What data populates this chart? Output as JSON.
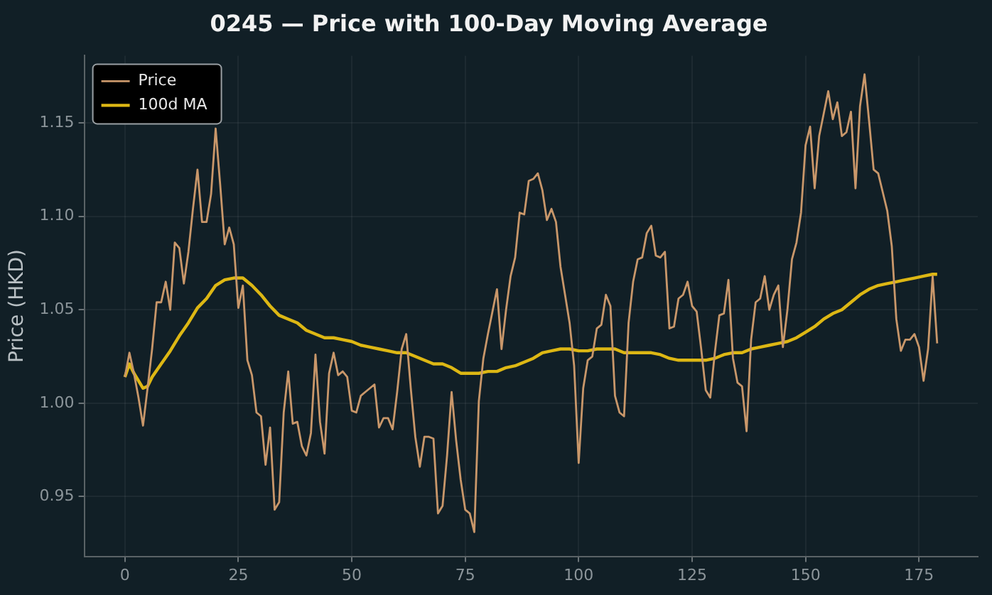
{
  "chart_data": {
    "type": "line",
    "title": "0245 — Price with 100-Day Moving Average",
    "ylabel": "Price (HKD)",
    "x": [
      0,
      1,
      2,
      3,
      4,
      5,
      6,
      7,
      8,
      9,
      10,
      11,
      12,
      13,
      14,
      15,
      16,
      17,
      18,
      19,
      20,
      21,
      22,
      23,
      24,
      25,
      26,
      27,
      28,
      29,
      30,
      31,
      32,
      33,
      34,
      35,
      36,
      37,
      38,
      39,
      40,
      41,
      42,
      43,
      44,
      45,
      46,
      47,
      48,
      49,
      50,
      51,
      52,
      53,
      54,
      55,
      56,
      57,
      58,
      59,
      60,
      61,
      62,
      63,
      64,
      65,
      66,
      67,
      68,
      69,
      70,
      71,
      72,
      73,
      74,
      75,
      76,
      77,
      78,
      79,
      80,
      81,
      82,
      83,
      84,
      85,
      86,
      87,
      88,
      89,
      90,
      91,
      92,
      93,
      94,
      95,
      96,
      97,
      98,
      99,
      100,
      101,
      102,
      103,
      104,
      105,
      106,
      107,
      108,
      109,
      110,
      111,
      112,
      113,
      114,
      115,
      116,
      117,
      118,
      119,
      120,
      121,
      122,
      123,
      124,
      125,
      126,
      127,
      128,
      129,
      130,
      131,
      132,
      133,
      134,
      135,
      136,
      137,
      138,
      139,
      140,
      141,
      142,
      143,
      144,
      145,
      146,
      147,
      148,
      149,
      150,
      151,
      152,
      153,
      154,
      155,
      156,
      157,
      158,
      159,
      160,
      161,
      162,
      163,
      164,
      165,
      166,
      167,
      168,
      169,
      170,
      171,
      172,
      173,
      174,
      175,
      176,
      177,
      178,
      179
    ],
    "series": [
      {
        "name": "Price",
        "color": "#c9976a",
        "values": [
          1.014,
          1.027,
          1.016,
          1.003,
          0.988,
          1.008,
          1.029,
          1.054,
          1.054,
          1.065,
          1.05,
          1.086,
          1.083,
          1.064,
          1.081,
          1.104,
          1.125,
          1.097,
          1.097,
          1.112,
          1.147,
          1.117,
          1.085,
          1.094,
          1.085,
          1.051,
          1.063,
          1.023,
          1.015,
          0.995,
          0.993,
          0.967,
          0.987,
          0.943,
          0.947,
          0.995,
          1.017,
          0.989,
          0.99,
          0.977,
          0.972,
          0.984,
          1.026,
          0.99,
          0.973,
          1.016,
          1.027,
          1.015,
          1.017,
          1.014,
          0.996,
          0.995,
          1.004,
          1.006,
          1.008,
          1.01,
          0.987,
          0.992,
          0.992,
          0.986,
          1.006,
          1.029,
          1.037,
          1.008,
          0.982,
          0.966,
          0.982,
          0.982,
          0.981,
          0.941,
          0.945,
          0.972,
          1.006,
          0.98,
          0.959,
          0.943,
          0.941,
          0.931,
          1.001,
          1.024,
          1.037,
          1.049,
          1.061,
          1.029,
          1.05,
          1.068,
          1.078,
          1.102,
          1.101,
          1.119,
          1.12,
          1.123,
          1.114,
          1.098,
          1.104,
          1.097,
          1.073,
          1.058,
          1.043,
          1.02,
          0.968,
          1.008,
          1.023,
          1.025,
          1.04,
          1.042,
          1.058,
          1.052,
          1.004,
          0.995,
          0.993,
          1.043,
          1.065,
          1.077,
          1.078,
          1.091,
          1.095,
          1.079,
          1.078,
          1.081,
          1.04,
          1.041,
          1.056,
          1.058,
          1.065,
          1.052,
          1.049,
          1.029,
          1.007,
          1.003,
          1.027,
          1.047,
          1.048,
          1.066,
          1.024,
          1.011,
          1.009,
          0.985,
          1.034,
          1.054,
          1.056,
          1.068,
          1.05,
          1.058,
          1.063,
          1.03,
          1.05,
          1.077,
          1.086,
          1.102,
          1.138,
          1.148,
          1.115,
          1.143,
          1.155,
          1.167,
          1.152,
          1.161,
          1.143,
          1.145,
          1.156,
          1.115,
          1.159,
          1.176,
          1.151,
          1.125,
          1.123,
          1.113,
          1.103,
          1.084,
          1.045,
          1.028,
          1.034,
          1.034,
          1.037,
          1.03,
          1.012,
          1.029,
          1.068,
          1.032
        ]
      },
      {
        "name": "100d MA",
        "color": "#ddb714",
        "x": [
          0,
          1,
          2,
          4,
          5,
          6,
          8,
          10,
          12,
          14,
          16,
          18,
          20,
          22,
          24,
          26,
          28,
          30,
          32,
          34,
          36,
          38,
          40,
          42,
          44,
          46,
          48,
          50,
          52,
          54,
          56,
          58,
          60,
          62,
          64,
          66,
          68,
          70,
          72,
          74,
          76,
          78,
          80,
          82,
          84,
          86,
          88,
          90,
          92,
          94,
          96,
          98,
          100,
          102,
          104,
          106,
          108,
          110,
          112,
          114,
          116,
          118,
          120,
          122,
          124,
          126,
          128,
          130,
          132,
          134,
          136,
          138,
          140,
          142,
          144,
          146,
          148,
          150,
          152,
          154,
          156,
          158,
          160,
          162,
          164,
          166,
          168,
          170,
          172,
          174,
          176,
          178,
          179
        ],
        "values": [
          1.014,
          1.021,
          1.016,
          1.008,
          1.009,
          1.014,
          1.021,
          1.028,
          1.036,
          1.043,
          1.051,
          1.056,
          1.063,
          1.066,
          1.067,
          1.067,
          1.063,
          1.058,
          1.052,
          1.047,
          1.045,
          1.043,
          1.039,
          1.037,
          1.035,
          1.035,
          1.034,
          1.033,
          1.031,
          1.03,
          1.029,
          1.028,
          1.027,
          1.027,
          1.025,
          1.023,
          1.021,
          1.021,
          1.019,
          1.016,
          1.016,
          1.016,
          1.017,
          1.017,
          1.019,
          1.02,
          1.022,
          1.024,
          1.027,
          1.028,
          1.029,
          1.029,
          1.028,
          1.028,
          1.029,
          1.029,
          1.029,
          1.027,
          1.027,
          1.027,
          1.027,
          1.026,
          1.024,
          1.023,
          1.023,
          1.023,
          1.023,
          1.024,
          1.026,
          1.027,
          1.027,
          1.029,
          1.03,
          1.031,
          1.032,
          1.033,
          1.035,
          1.038,
          1.041,
          1.045,
          1.048,
          1.05,
          1.054,
          1.058,
          1.061,
          1.063,
          1.064,
          1.065,
          1.066,
          1.067,
          1.068,
          1.069,
          1.069
        ]
      }
    ],
    "xlim": [
      -8.95,
      187.95
    ],
    "xticks": [
      0,
      25,
      50,
      75,
      100,
      125,
      150,
      175
    ],
    "ylim": [
      0.918,
      1.186
    ],
    "yticks": [
      {
        "value": 0.95,
        "label": "0.95"
      },
      {
        "value": 1.0,
        "label": "1.00"
      },
      {
        "value": 1.05,
        "label": "1.05"
      },
      {
        "value": 1.1,
        "label": "1.10"
      },
      {
        "value": 1.15,
        "label": "1.15"
      }
    ],
    "grid": true,
    "legend": "top left"
  }
}
